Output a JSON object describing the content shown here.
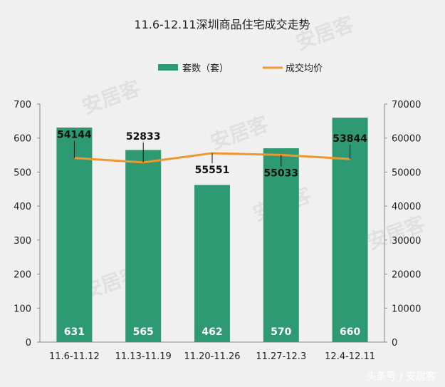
{
  "chart_data": {
    "type": "bar",
    "title": "11.6-12.11深圳商品住宅成交走势",
    "categories": [
      "11.6-11.12",
      "11.13-11.19",
      "11.20-11.26",
      "11.27-12.3",
      "12.4-12.11"
    ],
    "series": [
      {
        "name": "套数（套）",
        "type": "bar",
        "axis": "left",
        "color": "#2e9a73",
        "values": [
          631,
          565,
          462,
          570,
          660
        ]
      },
      {
        "name": "成交均价",
        "type": "line",
        "axis": "right",
        "color": "#f0962e",
        "values": [
          54144,
          52833,
          55551,
          55033,
          53844
        ]
      }
    ],
    "y_left": {
      "min": 0,
      "max": 700,
      "ticks": [
        0,
        100,
        200,
        300,
        400,
        500,
        600,
        700
      ]
    },
    "y_right": {
      "min": 0,
      "max": 70000,
      "ticks": [
        0,
        10000,
        20000,
        30000,
        40000,
        50000,
        60000,
        70000
      ]
    },
    "legend_position": "top-center",
    "grid": false
  },
  "watermark_text": "安居客",
  "footer_text": "头条号 / 安居客"
}
